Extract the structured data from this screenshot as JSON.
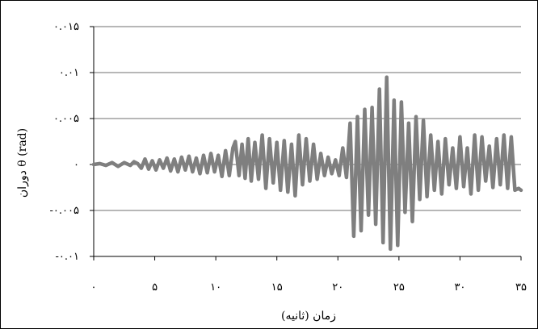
{
  "chart_data": {
    "type": "line",
    "xlabel": "زمان (ثانیه)",
    "ylabel": "دوران θ (rad)",
    "xlim": [
      0,
      35
    ],
    "ylim": [
      -0.01,
      0.015
    ],
    "x_ticks": [
      0,
      5,
      10,
      15,
      20,
      25,
      30,
      35
    ],
    "x_tick_labels": [
      "۰",
      "۵",
      "۱۰",
      "۱۵",
      "۲۰",
      "۲۵",
      "۳۰",
      "۳۵"
    ],
    "y_ticks": [
      0.015,
      0.01,
      0.005,
      0,
      -0.005,
      -0.01
    ],
    "y_tick_labels": [
      "۰.۰۱۵",
      "۰.۰۱",
      "۰.۰۰۵",
      "۰",
      "-۰.۰۰۵",
      "-۰.۰۱"
    ],
    "grid": "horizontal",
    "series_color": "#7f7f7f",
    "series": [
      {
        "x": [
          0,
          0.5,
          1,
          1.5,
          2,
          2.5,
          3,
          3.3,
          3.6,
          3.9,
          4.2,
          4.5,
          4.8,
          5.1,
          5.4,
          5.7,
          6,
          6.3,
          6.6,
          6.9,
          7.2,
          7.5,
          7.8,
          8.1,
          8.4,
          8.7,
          9,
          9.3,
          9.6,
          9.9,
          10.2,
          10.5,
          10.8,
          11.1,
          11.4,
          11.6,
          11.9,
          12.15,
          12.4,
          12.65,
          12.9,
          13.2,
          13.5,
          13.8,
          14.1,
          14.4,
          14.7,
          15.0,
          15.3,
          15.6,
          15.9,
          16.2,
          16.5,
          16.8,
          17.1,
          17.4,
          17.7,
          18.0,
          18.3,
          18.6,
          18.9,
          19.2,
          19.5,
          19.8,
          20.1,
          20.4,
          20.7,
          21.0,
          21.3,
          21.6,
          21.9,
          22.2,
          22.5,
          22.8,
          23.1,
          23.4,
          23.7,
          24.0,
          24.3,
          24.6,
          24.9,
          25.2,
          25.5,
          25.8,
          26.1,
          26.4,
          26.7,
          27.0,
          27.3,
          27.6,
          27.9,
          28.2,
          28.5,
          28.8,
          29.1,
          29.4,
          29.7,
          30.0,
          30.3,
          30.6,
          30.9,
          31.2,
          31.5,
          31.8,
          32.1,
          32.4,
          32.7,
          33.0,
          33.3,
          33.6,
          33.9,
          34.2,
          34.5,
          34.8,
          35.0
        ],
        "y": [
          0,
          0.0001,
          -0.0001,
          0.0002,
          -0.0002,
          0.0002,
          -0.0001,
          0.0003,
          0.0001,
          -0.0004,
          0.0006,
          -0.0005,
          0.0004,
          -0.0006,
          0.0005,
          -0.0004,
          0.0007,
          -0.0007,
          0.0006,
          -0.0008,
          0.0008,
          -0.0006,
          0.0009,
          -0.0008,
          0.0007,
          -0.001,
          0.001,
          -0.0009,
          0.0012,
          -0.0008,
          0.001,
          -0.0013,
          0.0015,
          -0.0012,
          0.0018,
          0.0025,
          -0.0012,
          0.0022,
          -0.0015,
          0.0028,
          -0.0018,
          0.0024,
          -0.0016,
          0.0032,
          -0.0026,
          0.0028,
          -0.002,
          0.0024,
          -0.0028,
          0.0026,
          -0.003,
          0.0022,
          -0.0034,
          0.0032,
          -0.0022,
          0.0028,
          -0.0018,
          0.0022,
          -0.0016,
          0.0012,
          -0.0012,
          0.0008,
          -0.001,
          0.0005,
          -0.0012,
          0.0018,
          -0.0014,
          0.0045,
          -0.0078,
          0.0052,
          -0.0072,
          0.006,
          -0.0055,
          0.0062,
          -0.0065,
          0.0082,
          -0.0085,
          0.0095,
          -0.0092,
          0.007,
          -0.0088,
          0.0068,
          -0.0052,
          0.0045,
          -0.0062,
          0.0052,
          -0.0038,
          0.0048,
          -0.0035,
          0.0032,
          -0.0028,
          0.0025,
          -0.0032,
          0.0028,
          -0.0022,
          0.0018,
          -0.0026,
          0.003,
          -0.0024,
          0.0018,
          -0.0032,
          0.0032,
          -0.0028,
          0.003,
          -0.0018,
          0.002,
          -0.0025,
          0.0028,
          -0.0022,
          0.0032,
          -0.0026,
          0.003,
          -0.0028,
          -0.0026,
          -0.0028
        ]
      }
    ]
  }
}
